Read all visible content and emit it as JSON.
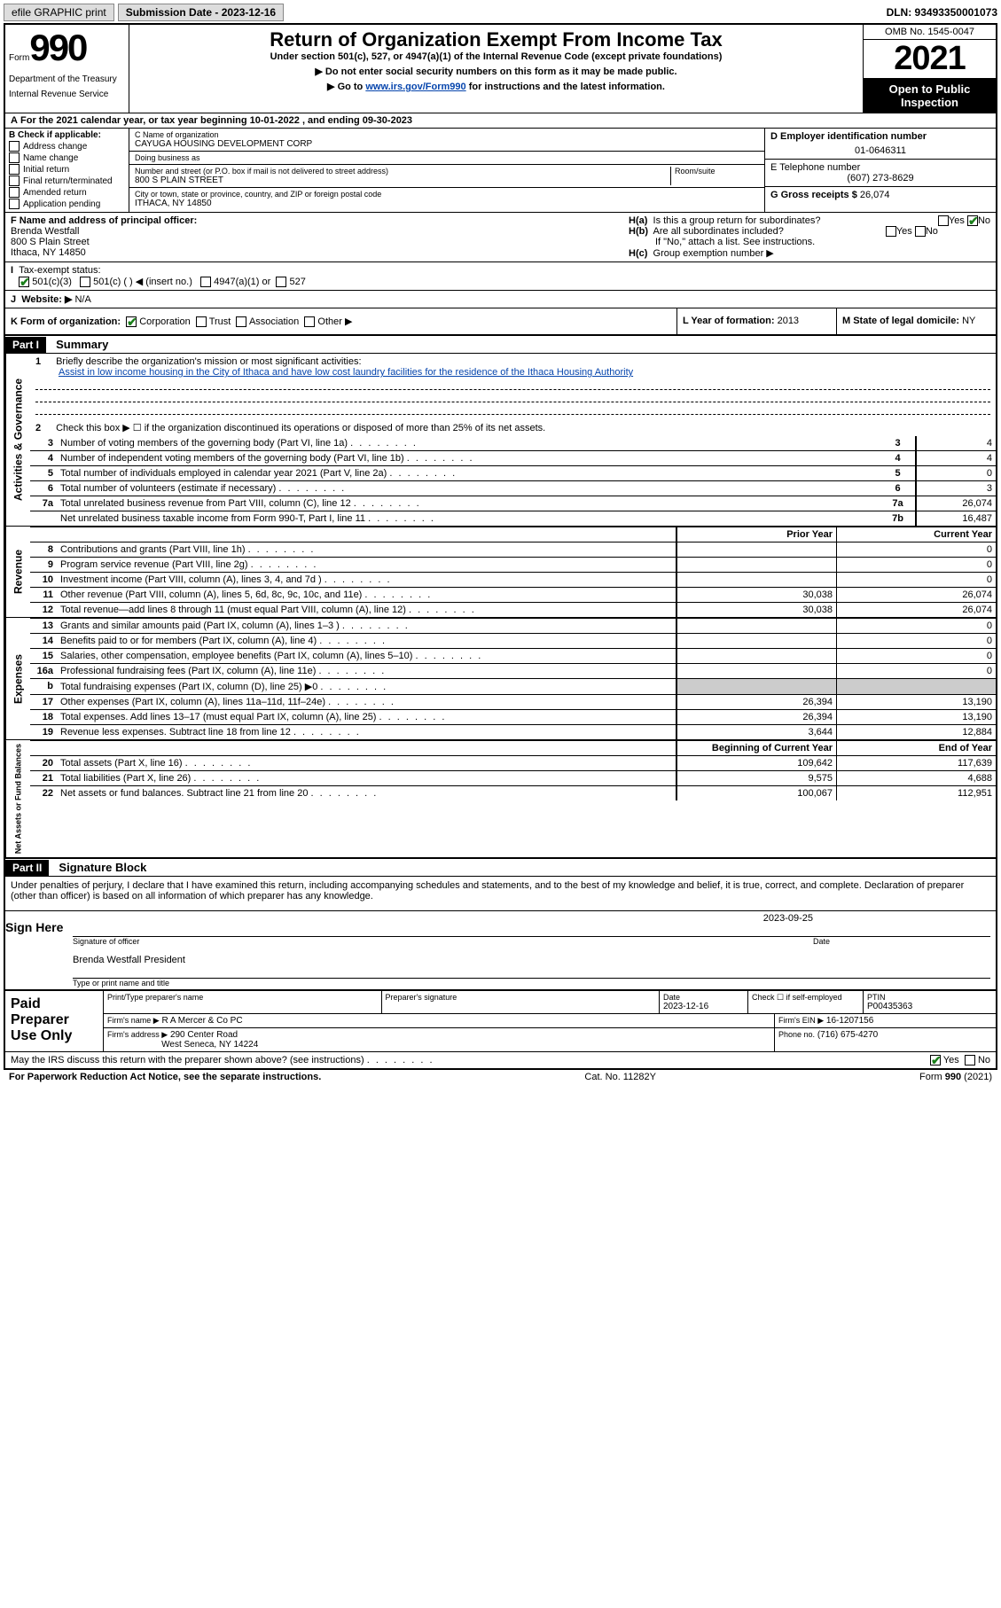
{
  "topbar": {
    "efile": "efile GRAPHIC print",
    "submission_label": "Submission Date - 2023-12-16",
    "dln": "DLN: 93493350001073"
  },
  "header": {
    "form_word": "Form",
    "form_num": "990",
    "dept": "Department of the Treasury",
    "irs": "Internal Revenue Service",
    "title": "Return of Organization Exempt From Income Tax",
    "sub1": "Under section 501(c), 527, or 4947(a)(1) of the Internal Revenue Code (except private foundations)",
    "sub2": "Do not enter social security numbers on this form as it may be made public.",
    "sub3": "Go to ",
    "sub3_link": "www.irs.gov/Form990",
    "sub3_tail": " for instructions and the latest information.",
    "omb": "OMB No. 1545-0047",
    "year": "2021",
    "open_public": "Open to Public Inspection"
  },
  "rowA": {
    "text": "For the 2021 calendar year, or tax year beginning 10-01-2022    , and ending 09-30-2023",
    "prefix": "A"
  },
  "colB": {
    "label": "B Check if applicable:",
    "items": [
      "Address change",
      "Name change",
      "Initial return",
      "Final return/terminated",
      "Amended return",
      "Application pending"
    ]
  },
  "colC": {
    "name_label": "C Name of organization",
    "name": "CAYUGA HOUSING DEVELOPMENT CORP",
    "dba_label": "Doing business as",
    "dba": "",
    "addr_label": "Number and street (or P.O. box if mail is not delivered to street address)",
    "room_label": "Room/suite",
    "addr": "800 S PLAIN STREET",
    "city_label": "City or town, state or province, country, and ZIP or foreign postal code",
    "city": "ITHACA, NY  14850"
  },
  "colD": {
    "ein_label": "D Employer identification number",
    "ein": "01-0646311",
    "phone_label": "E Telephone number",
    "phone": "(607) 273-8629",
    "gross_label": "G Gross receipts $",
    "gross": "26,074"
  },
  "rowF": {
    "label": "F Name and address of principal officer:",
    "name": "Brenda Westfall",
    "addr1": "800 S Plain Street",
    "addr2": "Ithaca, NY  14850"
  },
  "rowH": {
    "a": "Is this a group return for subordinates?",
    "a_yes": "Yes",
    "a_no": "No",
    "b": "Are all subordinates included?",
    "b_yes": "Yes",
    "b_no": "No",
    "note": "If \"No,\" attach a list. See instructions.",
    "c": "Group exemption number ▶",
    "ha": "H(a)",
    "hb": "H(b)",
    "hc": "H(c)"
  },
  "rowI": {
    "label": "Tax-exempt status:",
    "opts": [
      "501(c)(3)",
      "501(c) (  ) ◀ (insert no.)",
      "4947(a)(1) or",
      "527"
    ],
    "prefix": "I"
  },
  "rowJ": {
    "label": "Website: ▶",
    "value": "N/A",
    "prefix": "J"
  },
  "rowK": {
    "label": "K Form of organization:",
    "opts": [
      "Corporation",
      "Trust",
      "Association",
      "Other ▶"
    ]
  },
  "rowL": {
    "label": "L Year of formation:",
    "value": "2013"
  },
  "rowM": {
    "label": "M State of legal domicile:",
    "value": "NY"
  },
  "part1": {
    "num": "Part I",
    "title": "Summary"
  },
  "summary": {
    "q1_label": "Briefly describe the organization's mission or most significant activities:",
    "q1_num": "1",
    "q1_text": "Assist in low income housing in the City of Ithaca and have low cost laundry facilities for the residence of the Ithaca Housing Authority",
    "q2_num": "2",
    "q2_text": "Check this box ▶ ☐  if the organization discontinued its operations or disposed of more than 25% of its net assets."
  },
  "vtabs": {
    "gov": "Activities & Governance",
    "rev": "Revenue",
    "exp": "Expenses",
    "net": "Net Assets or Fund Balances"
  },
  "lines_gov": [
    {
      "n": "3",
      "t": "Number of voting members of the governing body (Part VI, line 1a)",
      "l": "3",
      "v": "4"
    },
    {
      "n": "4",
      "t": "Number of independent voting members of the governing body (Part VI, line 1b)",
      "l": "4",
      "v": "4"
    },
    {
      "n": "5",
      "t": "Total number of individuals employed in calendar year 2021 (Part V, line 2a)",
      "l": "5",
      "v": "0"
    },
    {
      "n": "6",
      "t": "Total number of volunteers (estimate if necessary)",
      "l": "6",
      "v": "3"
    },
    {
      "n": "7a",
      "t": "Total unrelated business revenue from Part VIII, column (C), line 12",
      "l": "7a",
      "v": "26,074"
    },
    {
      "n": "",
      "t": "Net unrelated business taxable income from Form 990-T, Part I, line 11",
      "l": "7b",
      "v": "16,487"
    }
  ],
  "col_headers": {
    "prior": "Prior Year",
    "current": "Current Year",
    "begin": "Beginning of Current Year",
    "end": "End of Year"
  },
  "lines_rev": [
    {
      "n": "8",
      "t": "Contributions and grants (Part VIII, line 1h)",
      "v1": "",
      "v2": "0"
    },
    {
      "n": "9",
      "t": "Program service revenue (Part VIII, line 2g)",
      "v1": "",
      "v2": "0"
    },
    {
      "n": "10",
      "t": "Investment income (Part VIII, column (A), lines 3, 4, and 7d )",
      "v1": "",
      "v2": "0"
    },
    {
      "n": "11",
      "t": "Other revenue (Part VIII, column (A), lines 5, 6d, 8c, 9c, 10c, and 11e)",
      "v1": "30,038",
      "v2": "26,074"
    },
    {
      "n": "12",
      "t": "Total revenue—add lines 8 through 11 (must equal Part VIII, column (A), line 12)",
      "v1": "30,038",
      "v2": "26,074"
    }
  ],
  "lines_exp": [
    {
      "n": "13",
      "t": "Grants and similar amounts paid (Part IX, column (A), lines 1–3 )",
      "v1": "",
      "v2": "0"
    },
    {
      "n": "14",
      "t": "Benefits paid to or for members (Part IX, column (A), line 4)",
      "v1": "",
      "v2": "0"
    },
    {
      "n": "15",
      "t": "Salaries, other compensation, employee benefits (Part IX, column (A), lines 5–10)",
      "v1": "",
      "v2": "0"
    },
    {
      "n": "16a",
      "t": "Professional fundraising fees (Part IX, column (A), line 11e)",
      "v1": "",
      "v2": "0"
    },
    {
      "n": "b",
      "t": "Total fundraising expenses (Part IX, column (D), line 25) ▶0",
      "v1": "",
      "v2": "",
      "shaded": true
    },
    {
      "n": "17",
      "t": "Other expenses (Part IX, column (A), lines 11a–11d, 11f–24e)",
      "v1": "26,394",
      "v2": "13,190"
    },
    {
      "n": "18",
      "t": "Total expenses. Add lines 13–17 (must equal Part IX, column (A), line 25)",
      "v1": "26,394",
      "v2": "13,190"
    },
    {
      "n": "19",
      "t": "Revenue less expenses. Subtract line 18 from line 12",
      "v1": "3,644",
      "v2": "12,884"
    }
  ],
  "lines_net": [
    {
      "n": "20",
      "t": "Total assets (Part X, line 16)",
      "v1": "109,642",
      "v2": "117,639"
    },
    {
      "n": "21",
      "t": "Total liabilities (Part X, line 26)",
      "v1": "9,575",
      "v2": "4,688"
    },
    {
      "n": "22",
      "t": "Net assets or fund balances. Subtract line 21 from line 20",
      "v1": "100,067",
      "v2": "112,951"
    }
  ],
  "part2": {
    "num": "Part II",
    "title": "Signature Block"
  },
  "sig": {
    "decl": "Under penalties of perjury, I declare that I have examined this return, including accompanying schedules and statements, and to the best of my knowledge and belief, it is true, correct, and complete. Declaration of preparer (other than officer) is based on all information of which preparer has any knowledge.",
    "sign_here": "Sign Here",
    "sig_officer": "Signature of officer",
    "date": "Date",
    "date_val": "2023-09-25",
    "name_title": "Brenda Westfall  President",
    "type_name": "Type or print name and title"
  },
  "paid": {
    "label": "Paid Preparer Use Only",
    "h1": "Print/Type preparer's name",
    "h2": "Preparer's signature",
    "h3": "Date",
    "h3v": "2023-12-16",
    "h4": "Check ☐ if self-employed",
    "h5": "PTIN",
    "h5v": "P00435363",
    "firm_name_l": "Firm's name    ▶",
    "firm_name": "R A Mercer & Co PC",
    "firm_ein_l": "Firm's EIN ▶",
    "firm_ein": "16-1207156",
    "firm_addr_l": "Firm's address ▶",
    "firm_addr1": "290 Center Road",
    "firm_addr2": "West Seneca, NY  14224",
    "phone_l": "Phone no.",
    "phone": "(716) 675-4270"
  },
  "discuss": {
    "text": "May the IRS discuss this return with the preparer shown above? (see instructions)",
    "yes": "Yes",
    "no": "No"
  },
  "footer": {
    "left": "For Paperwork Reduction Act Notice, see the separate instructions.",
    "mid": "Cat. No. 11282Y",
    "right": "Form 990 (2021)"
  },
  "colors": {
    "link": "#0645ad",
    "check_green": "#1a7f1a",
    "shade": "#cccccc",
    "btn_bg": "#dddddd"
  }
}
